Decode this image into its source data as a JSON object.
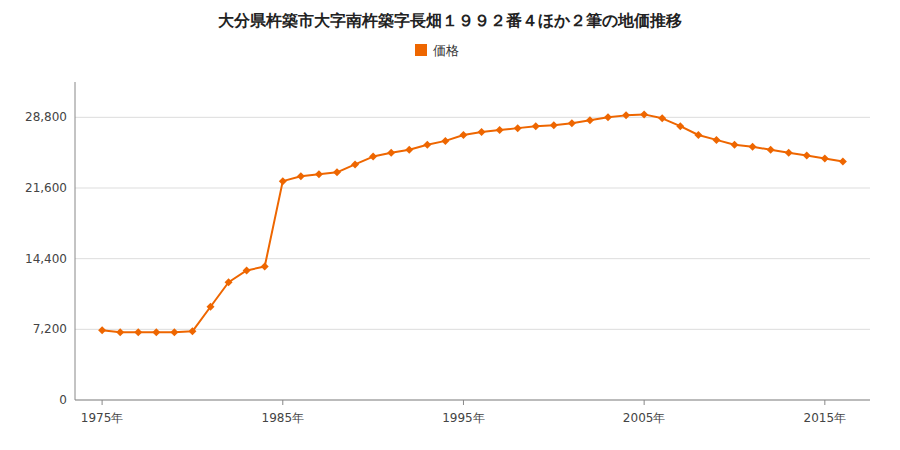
{
  "chart_data": {
    "type": "line",
    "title": "大分県杵築市大字南杵築字長畑１９９２番４ほか２筆の地価推移",
    "x": [
      1975,
      1976,
      1977,
      1978,
      1979,
      1980,
      1981,
      1982,
      1983,
      1984,
      1985,
      1986,
      1987,
      1988,
      1989,
      1990,
      1991,
      1992,
      1993,
      1994,
      1995,
      1996,
      1997,
      1998,
      1999,
      2000,
      2001,
      2002,
      2003,
      2004,
      2005,
      2006,
      2007,
      2008,
      2009,
      2010,
      2011,
      2012,
      2013,
      2014,
      2015,
      2016
    ],
    "series": [
      {
        "name": "価格",
        "color": "#EE6600",
        "marker": "diamond",
        "values": [
          7100,
          6900,
          6900,
          6900,
          6900,
          7000,
          9500,
          12000,
          13200,
          13600,
          22300,
          22800,
          23000,
          23200,
          24000,
          24800,
          25200,
          25500,
          26000,
          26400,
          27000,
          27300,
          27500,
          27700,
          27900,
          28000,
          28200,
          28500,
          28800,
          29000,
          29100,
          28700,
          27900,
          27000,
          26500,
          26000,
          25800,
          25500,
          25200,
          24900,
          24600,
          24300
        ]
      }
    ],
    "xlim": [
      1973.5,
      2017.5
    ],
    "xticks": [
      {
        "value": 1975,
        "label": "1975年"
      },
      {
        "value": 1985,
        "label": "1985年"
      },
      {
        "value": 1995,
        "label": "1995年"
      },
      {
        "value": 2005,
        "label": "2005年"
      },
      {
        "value": 2015,
        "label": "2015年"
      }
    ],
    "ylim": [
      0,
      32400
    ],
    "yticks": [
      0,
      {
        "value": 7200,
        "label": "7,200"
      },
      {
        "value": 14400,
        "label": "14,400"
      },
      {
        "value": 21600,
        "label": "21,600"
      },
      {
        "value": 28800,
        "label": "28,800"
      }
    ],
    "grid": true,
    "legend": "top"
  }
}
